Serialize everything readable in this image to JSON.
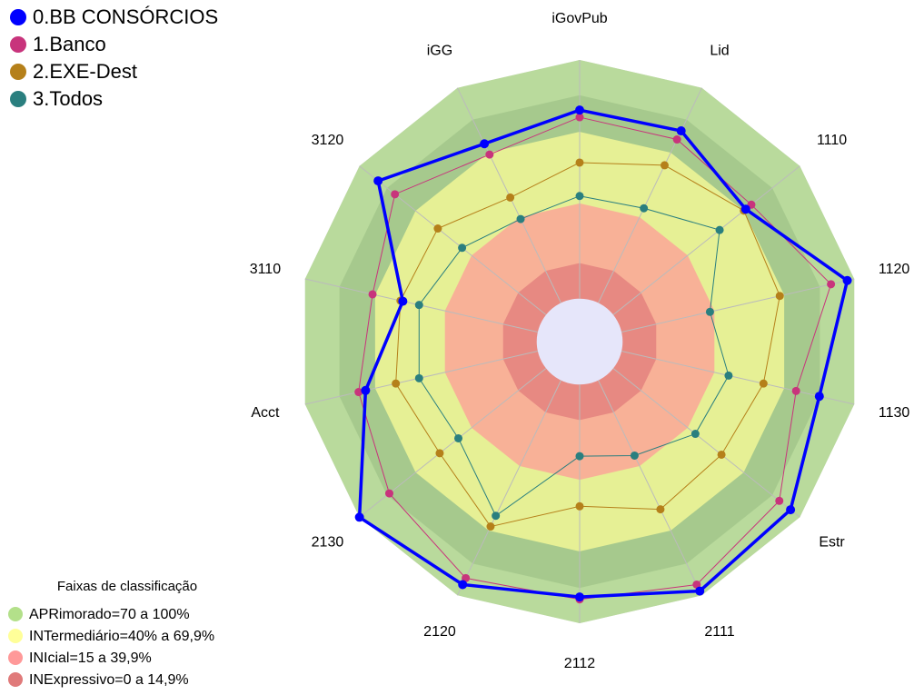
{
  "chart_data": {
    "type": "radar",
    "categories": [
      "iGovPub",
      "Lid",
      "1110",
      "1120",
      "1130",
      "Estr",
      "2111",
      "2112",
      "2120",
      "2130",
      "Acct",
      "3110",
      "3120",
      "iGG"
    ],
    "rlim": [
      -18,
      100
    ],
    "series": [
      {
        "name": "0.BB CONSÓRCIOS",
        "color": "#0000ff",
        "values": [
          79,
          80,
          71,
          97,
          85,
          95,
          98,
          89,
          95,
          100,
          74,
          58,
          90,
          74
        ]
      },
      {
        "name": "1.Banco",
        "color": "#c8347c",
        "values": [
          76,
          76,
          74,
          90,
          75,
          89,
          95,
          90,
          92,
          84,
          77,
          71,
          81,
          69
        ]
      },
      {
        "name": "2.EXE-Dest",
        "color": "#b5801a",
        "values": [
          57,
          64,
          70,
          68,
          61,
          58,
          60,
          51,
          68,
          57,
          61,
          59,
          58,
          49
        ]
      },
      {
        "name": "3.Todos",
        "color": "#2a7f7f",
        "values": [
          43,
          44,
          57,
          38,
          46,
          44,
          35,
          30,
          63,
          47,
          51,
          51,
          45,
          39
        ]
      }
    ],
    "bands_title": "Faixas de classificação",
    "bands": [
      {
        "label": "APRimorado=70 a 100%",
        "color": "#b3e08a",
        "from": 70,
        "to": 100
      },
      {
        "label": "INTermediário=40% a 69,9%",
        "color": "#ffff99",
        "from": 40,
        "to": 69.9
      },
      {
        "label": "INIcial=15 a 39,9%",
        "color": "#ff9999",
        "from": 15,
        "to": 39.9
      },
      {
        "label": "INExpressivo=0 a 14,9%",
        "color": "#e07a7a",
        "from": 0,
        "to": 14.9
      }
    ]
  }
}
